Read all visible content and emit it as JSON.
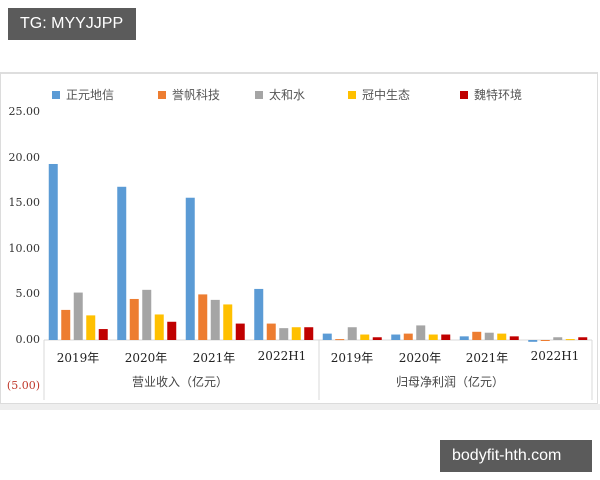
{
  "watermarks": {
    "top": "TG: MYYJJPP",
    "bottom": "bodyfit-hth.com"
  },
  "chart_data": {
    "type": "bar",
    "title": "",
    "xlabel": "",
    "ylabel": "",
    "ylim": [
      -5,
      25
    ],
    "y_ticks": [
      "25.00",
      "20.00",
      "15.00",
      "10.00",
      "5.00",
      "0.00",
      "(5.00)"
    ],
    "grid": false,
    "legend_position": "top",
    "groups": [
      {
        "label": "营业收入（亿元）",
        "categories": [
          "2019年",
          "2020年",
          "2021年",
          "2022H1"
        ]
      },
      {
        "label": "归母净利润（亿元）",
        "categories": [
          "2019年",
          "2020年",
          "2021年",
          "2022H1"
        ]
      }
    ],
    "categories": [
      "2019年",
      "2020年",
      "2021年",
      "2022H1",
      "2019年",
      "2020年",
      "2021年",
      "2022H1"
    ],
    "series": [
      {
        "name": "正元地信",
        "color": "#5b9bd5",
        "values": [
          19.3,
          16.8,
          15.6,
          5.6,
          0.7,
          0.6,
          0.4,
          -0.2
        ]
      },
      {
        "name": "誉帆科技",
        "color": "#ed7d31",
        "values": [
          3.3,
          4.5,
          5.0,
          1.8,
          0.1,
          0.7,
          0.9,
          0.0
        ]
      },
      {
        "name": "太和水",
        "color": "#a5a5a5",
        "values": [
          5.2,
          5.5,
          4.4,
          1.3,
          1.4,
          1.6,
          0.8,
          0.3
        ]
      },
      {
        "name": "冠中生态",
        "color": "#ffc000",
        "values": [
          2.7,
          2.8,
          3.9,
          1.4,
          0.6,
          0.6,
          0.7,
          0.1
        ]
      },
      {
        "name": "魏特环境",
        "color": "#c00000",
        "values": [
          1.2,
          2.0,
          1.8,
          1.4,
          0.3,
          0.6,
          0.4,
          0.3
        ]
      }
    ]
  }
}
